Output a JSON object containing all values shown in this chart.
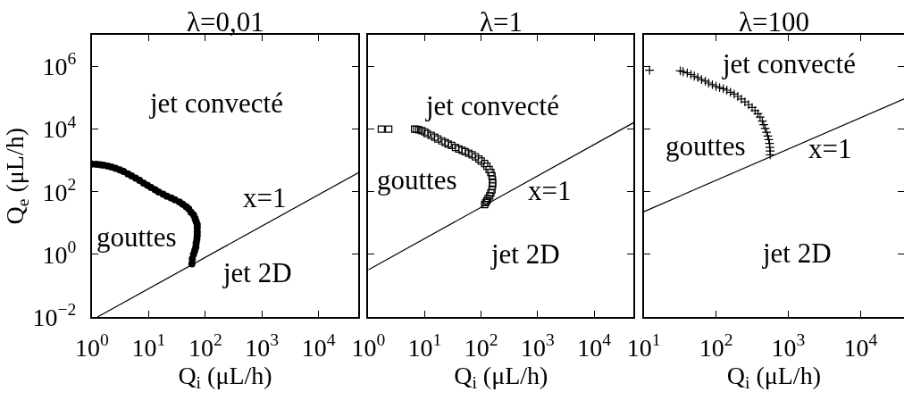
{
  "chart_data": [
    {
      "type": "scatter",
      "title": "λ=0,01",
      "xlabel": "Q$_{i}$ (μL/h)",
      "ylabel": "Q$_{e}$ (μL/h)",
      "log": "xy",
      "xlim": [
        1,
        50000
      ],
      "ylim": [
        0.01,
        10000000
      ],
      "xticks": [
        {
          "value": 1,
          "label": "10$^{0}$"
        },
        {
          "value": 10,
          "label": "10$^{1}$"
        },
        {
          "value": 100,
          "label": "10$^{2}$"
        },
        {
          "value": 1000,
          "label": "10$^{3}$"
        },
        {
          "value": 10000,
          "label": "10$^{4}$"
        }
      ],
      "yticks": [
        {
          "value": 0.01,
          "label": "10$^{−2}$"
        },
        {
          "value": 1,
          "label": "10$^{0}$"
        },
        {
          "value": 100,
          "label": "10$^{2}$"
        },
        {
          "value": 10000,
          "label": "10$^{4}$"
        },
        {
          "value": 1000000,
          "label": "10$^{6}$"
        }
      ],
      "series": [
        {
          "color": "#000000",
          "marker": "circle",
          "x": [
            1,
            1.2,
            1.4,
            1.6,
            1.9,
            2.2,
            2.6,
            3.1,
            3.6,
            4.3,
            5.0,
            5.9,
            6.9,
            8.1,
            9.5,
            11,
            13,
            15,
            18,
            21,
            25,
            29,
            35,
            40,
            46,
            51,
            56,
            62,
            66,
            69,
            72,
            72,
            72,
            72,
            71,
            69,
            68,
            65,
            62,
            59,
            58
          ],
          "values": [
            760,
            750,
            720,
            700,
            660,
            620,
            560,
            500,
            440,
            370,
            320,
            270,
            230,
            190,
            160,
            135,
            115,
            98,
            83,
            72,
            63,
            55,
            47,
            40,
            33,
            28,
            22,
            18,
            14,
            11,
            8.9,
            7.1,
            5.2,
            4.0,
            3.0,
            2.3,
            1.7,
            1.3,
            1.0,
            0.71,
            0.5
          ]
        },
        {
          "type": "line",
          "color": "#000000",
          "line_style": "solid",
          "x": [
            1.25,
            50000
          ],
          "values": [
            0.01,
            400
          ]
        }
      ],
      "annotations": [
        "jet convecté",
        "gouttes",
        "x=1",
        "jet 2D"
      ]
    },
    {
      "type": "scatter",
      "title": "λ=1",
      "xlabel": "Q$_{i}$ (μL/h)",
      "log": "xy",
      "xlim": [
        1,
        50000
      ],
      "ylim": [
        0.01,
        10000000
      ],
      "tick_labels": "x",
      "xticks": [
        {
          "value": 1,
          "label": "10$^{0}$"
        },
        {
          "value": 10,
          "label": "10$^{1}$"
        },
        {
          "value": 100,
          "label": "10$^{2}$"
        },
        {
          "value": 1000,
          "label": "10$^{3}$"
        },
        {
          "value": 10000,
          "label": "10$^{4}$"
        }
      ],
      "yticks": [
        {
          "value": 0.01,
          "label": "10$^{−2}$"
        },
        {
          "value": 1,
          "label": "10$^{0}$"
        },
        {
          "value": 100,
          "label": "10$^{2}$"
        },
        {
          "value": 10000,
          "label": "10$^{4}$"
        },
        {
          "value": 1000000,
          "label": "10$^{6}$"
        }
      ],
      "series": [
        {
          "color": "#000000",
          "marker": "square",
          "x": [
            1.7,
            2.3,
            6.6,
            7.2,
            7.9,
            8.9,
            10,
            11,
            13,
            15,
            17,
            20,
            23,
            26,
            30,
            35,
            40,
            46,
            52,
            60,
            69,
            79,
            91,
            100,
            115,
            126,
            138,
            148,
            155,
            158,
            160,
            158,
            155,
            148,
            141,
            132,
            126,
            120,
            115
          ],
          "values": [
            10000,
            10000,
            10000,
            9800,
            9500,
            8900,
            8100,
            7200,
            6300,
            5500,
            4800,
            4200,
            3700,
            3300,
            3000,
            2600,
            2300,
            2100,
            1900,
            1700,
            1500,
            1300,
            1100,
            950,
            790,
            650,
            510,
            410,
            320,
            250,
            190,
            150,
            115,
            91,
            74,
            60,
            51,
            45,
            39
          ]
        },
        {
          "type": "line",
          "color": "#000000",
          "line_style": "solid",
          "x": [
            1,
            50000
          ],
          "values": [
            0.32,
            16000
          ]
        }
      ],
      "annotations": [
        "jet convecté",
        "gouttes",
        "x=1",
        "jet 2D"
      ]
    },
    {
      "type": "scatter",
      "title": "λ=100",
      "xlabel": "Q$_{i}$ (μL/h)",
      "log": "xy",
      "xlim": [
        10,
        40000
      ],
      "ylim": [
        0.01,
        10000000
      ],
      "tick_labels": "x",
      "xticks": [
        {
          "value": 10,
          "label": "10$^{1}$"
        },
        {
          "value": 100,
          "label": "10$^{2}$"
        },
        {
          "value": 1000,
          "label": "10$^{3}$"
        },
        {
          "value": 10000,
          "label": "10$^{4}$"
        }
      ],
      "yticks": [
        {
          "value": 0.01,
          "label": "10$^{−2}$"
        },
        {
          "value": 1,
          "label": "10$^{0}$"
        },
        {
          "value": 100,
          "label": "10$^{2}$"
        },
        {
          "value": 10000,
          "label": "10$^{4}$"
        },
        {
          "value": 1000000,
          "label": "10$^{6}$"
        }
      ],
      "series": [
        {
          "color": "#000000",
          "marker": "cross",
          "x": [
            12,
            32,
            35,
            40,
            45,
            50,
            56,
            63,
            71,
            79,
            89,
            100,
            112,
            126,
            141,
            158,
            178,
            200,
            224,
            251,
            282,
            316,
            347,
            380,
            407,
            437,
            457,
            479,
            500,
            520,
            537,
            550,
            556,
            562,
            562
          ],
          "values": [
            760000,
            720000,
            680000,
            620000,
            550000,
            490000,
            440000,
            380000,
            340000,
            295000,
            260000,
            230000,
            210000,
            195000,
            174000,
            150000,
            130000,
            110000,
            91000,
            74000,
            60000,
            49000,
            39000,
            31000,
            24000,
            18000,
            13800,
            10500,
            7900,
            6000,
            4600,
            3500,
            2600,
            2000,
            1500
          ]
        },
        {
          "type": "line",
          "color": "#000000",
          "line_style": "solid",
          "x": [
            10,
            40000
          ],
          "values": [
            23,
            92000
          ]
        }
      ],
      "annotations": [
        "jet convecté",
        "gouttes",
        "x=1",
        "jet 2D"
      ]
    }
  ]
}
